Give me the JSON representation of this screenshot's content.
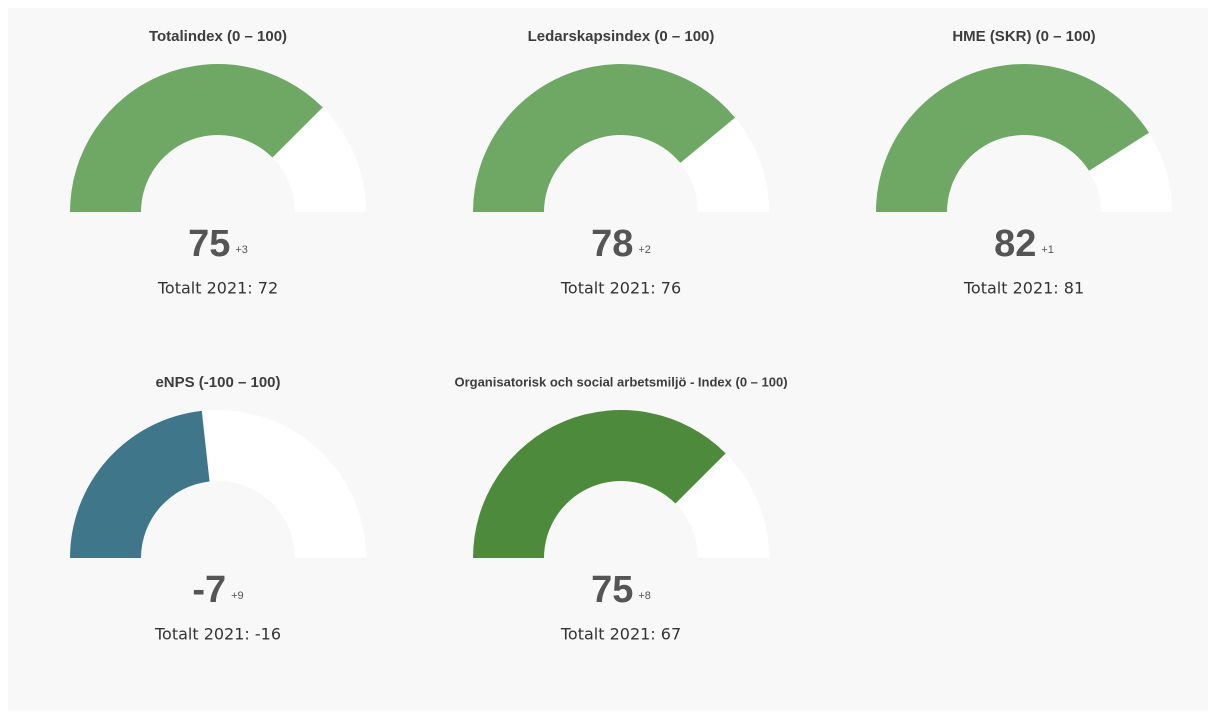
{
  "chart_data": [
    {
      "type": "gauge",
      "title": "Totalindex (0 – 100)",
      "value": 75,
      "change": "+3",
      "caption": "Totalt 2021: 72",
      "ylim": [
        0,
        100
      ],
      "color": "#6fa865"
    },
    {
      "type": "gauge",
      "title": "Ledarskapsindex (0 – 100)",
      "value": 78,
      "change": "+2",
      "caption": "Totalt 2021: 76",
      "ylim": [
        0,
        100
      ],
      "color": "#6fa865"
    },
    {
      "type": "gauge",
      "title": "HME (SKR) (0 – 100)",
      "value": 82,
      "change": "+1",
      "caption": "Totalt 2021: 81",
      "ylim": [
        0,
        100
      ],
      "color": "#6fa865"
    },
    {
      "type": "gauge",
      "title": "eNPS (-100 – 100)",
      "value": -7,
      "change": "+9",
      "caption": "Totalt 2021: -16",
      "ylim": [
        -100,
        100
      ],
      "color": "#3f7689"
    },
    {
      "type": "gauge",
      "title": "Organisatorisk och social arbetsmiljö - Index (0 – 100)",
      "value": 75,
      "change": "+8",
      "caption": "Totalt 2021: 67",
      "ylim": [
        0,
        100
      ],
      "color": "#4d8a3c"
    }
  ]
}
